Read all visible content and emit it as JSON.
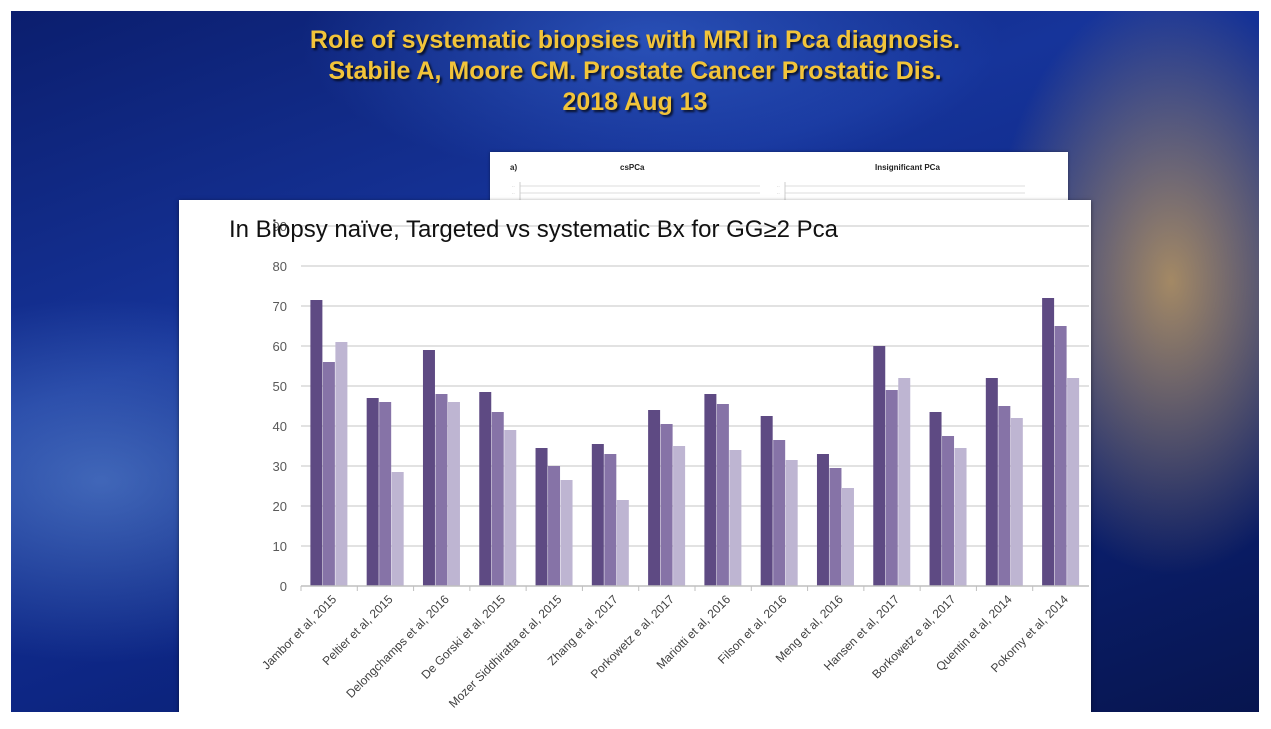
{
  "slide": {
    "title_lines": [
      "Role of systematic biopsies with MRI in Pca diagnosis.",
      "Stabile A, Moore CM. Prostate Cancer Prostatic Dis.",
      "2018 Aug 13"
    ]
  },
  "back_figure": {
    "panel_letter": "a)",
    "panel_titles": [
      "csPCa",
      "Insignificant PCa"
    ]
  },
  "colors": {
    "title": "#f2c43a",
    "series": [
      "#5e4a83",
      "#8673a7",
      "#beb5d2"
    ],
    "grid": "#d9d9d9"
  },
  "chart_data": {
    "type": "bar",
    "title": "In Biopsy naïve, Targeted vs systematic Bx for GG≥2 Pca",
    "xlabel": "",
    "ylabel": "",
    "ylim": [
      0,
      90
    ],
    "yticks": [
      0,
      10,
      20,
      30,
      40,
      50,
      60,
      70,
      80,
      90
    ],
    "grid": true,
    "categories": [
      "Jambor et al, 2015",
      "Peltier et al, 2015",
      "Delongchamps et al, 2016",
      "De Gorski et al, 2015",
      "Mozer Siddhiratta et al, 2015",
      "Zhang et al, 2017",
      "Porkowetz e al, 2017",
      "Mariotti et al, 2016",
      "Filson et al, 2016",
      "Meng et al, 2016",
      "Hansen et al, 2017",
      "Borkowetz e al, 2017",
      "Quentin et al, 2014",
      "Pokorny et al, 2014"
    ],
    "series": [
      {
        "values": [
          71.5,
          47,
          59,
          48.5,
          34.5,
          35.5,
          44,
          48,
          42.5,
          33,
          60,
          43.5,
          52,
          72
        ]
      },
      {
        "values": [
          56,
          46,
          48,
          43.5,
          30,
          33,
          40.5,
          45.5,
          36.5,
          29.5,
          49,
          37.5,
          45,
          65
        ]
      },
      {
        "values": [
          61,
          28.5,
          46,
          39,
          26.5,
          21.5,
          35,
          34,
          31.5,
          24.5,
          52,
          34.5,
          42,
          52
        ]
      }
    ]
  }
}
